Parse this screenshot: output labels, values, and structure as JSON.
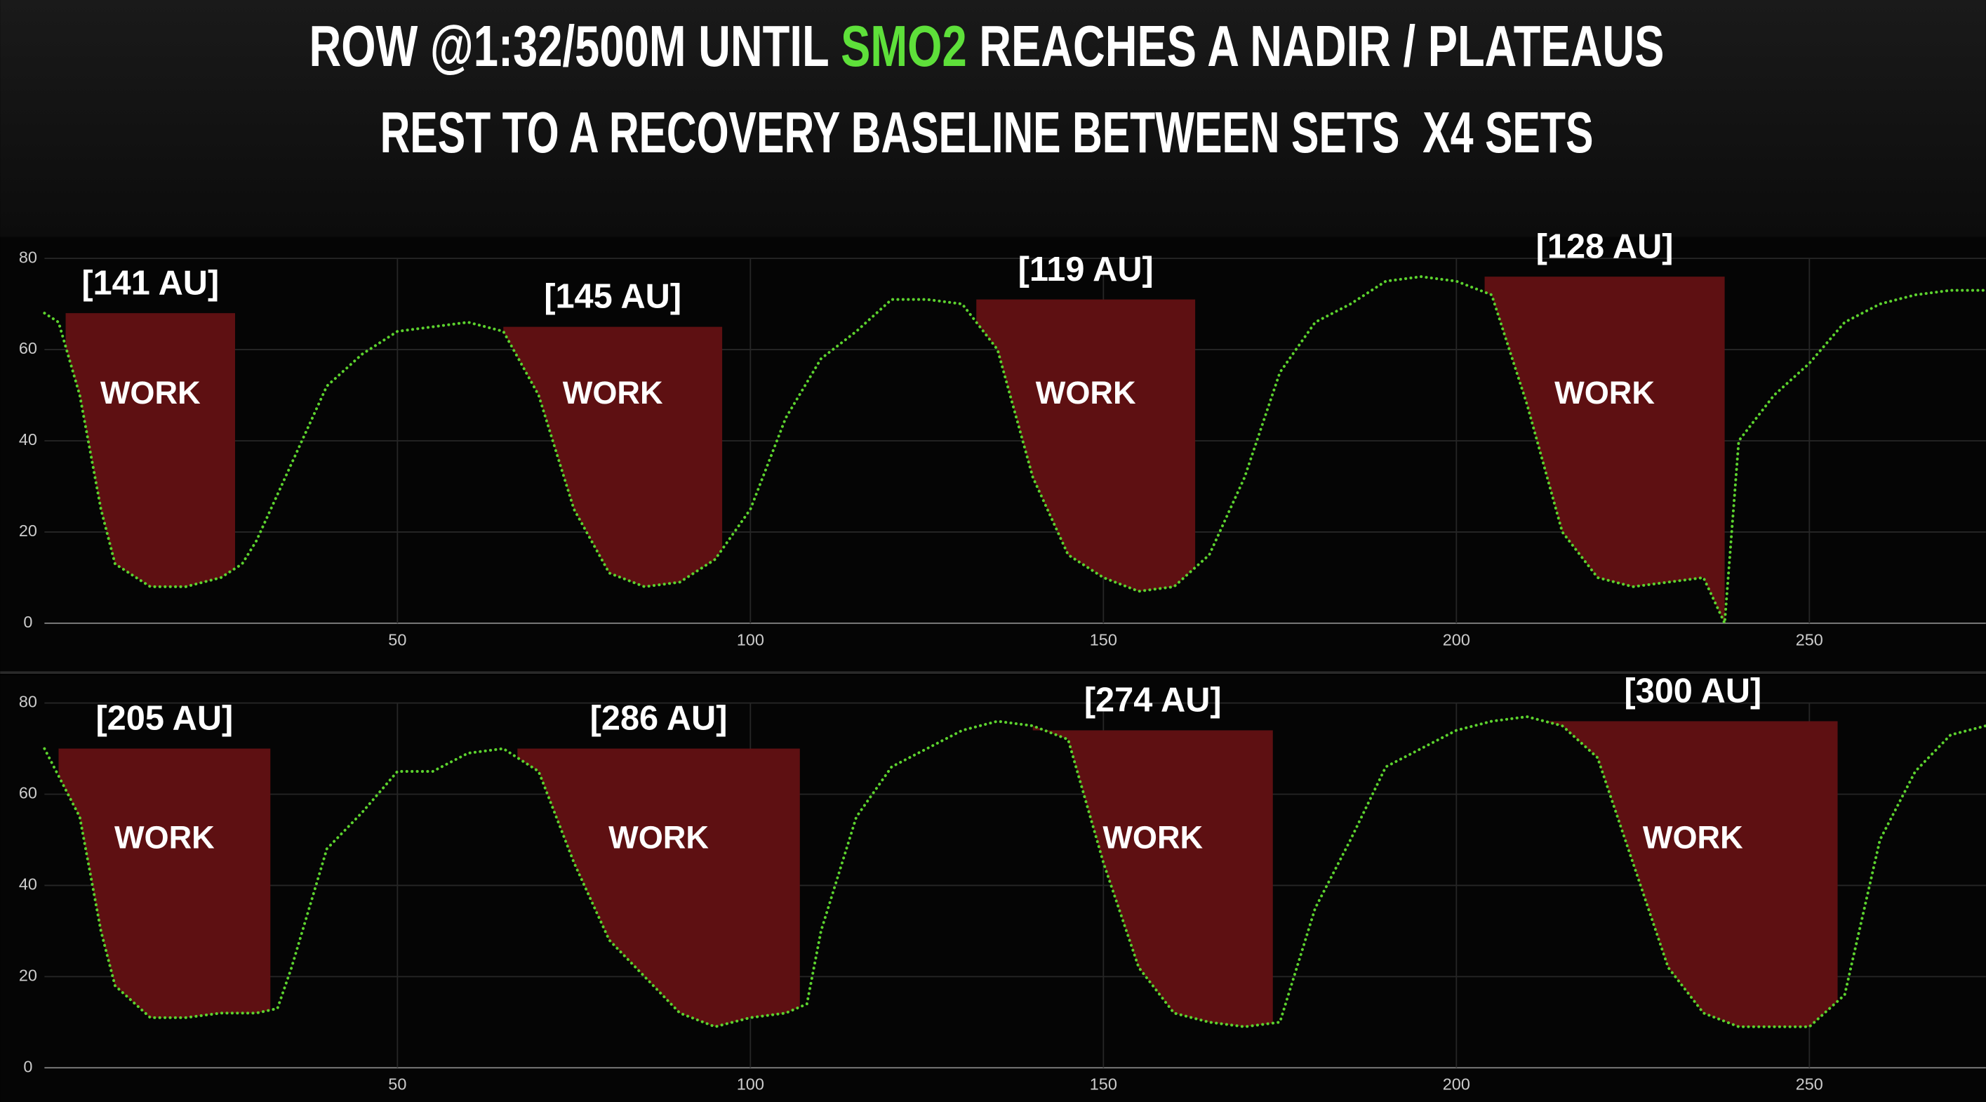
{
  "title": {
    "line1": [
      "ROW @1:32/500M UNTIL ",
      "SMO2",
      " REACHES A NADIR / PLATEAUS"
    ],
    "highlight_color": "#5ee03a",
    "line2": "REST TO A RECOVERY BASELINE BETWEEN SETS  X4 SETS"
  },
  "chart_data": [
    {
      "type": "line",
      "color": "#5cd22e",
      "xlim": [
        0,
        275
      ],
      "ylim": [
        0,
        80
      ],
      "xticks": [
        50,
        100,
        150,
        200,
        250
      ],
      "yticks": [
        0,
        20,
        40,
        60,
        80
      ],
      "grid": true,
      "x": [
        0,
        2,
        5,
        8,
        10,
        15,
        20,
        25,
        28,
        30,
        35,
        40,
        45,
        50,
        55,
        60,
        65,
        70,
        75,
        80,
        85,
        90,
        95,
        100,
        105,
        110,
        115,
        120,
        125,
        130,
        135,
        140,
        145,
        150,
        155,
        160,
        165,
        170,
        175,
        180,
        185,
        190,
        195,
        200,
        205,
        210,
        215,
        220,
        225,
        230,
        235,
        238,
        240,
        245,
        250,
        255,
        260,
        265,
        270,
        275
      ],
      "values": [
        68,
        66,
        50,
        25,
        13,
        8,
        8,
        10,
        13,
        18,
        35,
        52,
        59,
        64,
        65,
        66,
        64,
        50,
        25,
        11,
        8,
        9,
        14,
        25,
        45,
        58,
        64,
        71,
        71,
        70,
        60,
        32,
        15,
        10,
        7,
        8,
        15,
        32,
        55,
        66,
        70,
        75,
        76,
        75,
        72,
        48,
        20,
        10,
        8,
        9,
        10,
        0,
        40,
        50,
        57,
        66,
        70,
        72,
        73,
        73
      ],
      "annotations": [
        {
          "label": "[141 AU]",
          "text": "WORK",
          "x_start": 3,
          "x_end": 27,
          "top": 68,
          "color": "#5e1012"
        },
        {
          "label": "[145 AU]",
          "text": "WORK",
          "x_start": 65,
          "x_end": 96,
          "top": 65,
          "color": "#5e1012"
        },
        {
          "label": "[119 AU]",
          "text": "WORK",
          "x_start": 132,
          "x_end": 163,
          "top": 71,
          "color": "#5e1012"
        },
        {
          "label": "[128 AU]",
          "text": "WORK",
          "x_start": 204,
          "x_end": 238,
          "top": 76,
          "color": "#5e1012"
        }
      ]
    },
    {
      "type": "line",
      "color": "#5cd22e",
      "xlim": [
        0,
        275
      ],
      "ylim": [
        0,
        80
      ],
      "xticks": [
        50,
        100,
        150,
        200,
        250
      ],
      "yticks": [
        0,
        20,
        40,
        60,
        80
      ],
      "grid": true,
      "x": [
        0,
        5,
        8,
        10,
        15,
        20,
        25,
        30,
        33,
        35,
        40,
        45,
        50,
        55,
        60,
        65,
        70,
        75,
        80,
        85,
        90,
        95,
        100,
        105,
        108,
        110,
        115,
        120,
        125,
        130,
        135,
        140,
        145,
        150,
        155,
        160,
        165,
        170,
        175,
        180,
        185,
        190,
        195,
        200,
        205,
        210,
        215,
        220,
        225,
        230,
        235,
        240,
        245,
        250,
        255,
        260,
        265,
        270,
        275
      ],
      "values": [
        70,
        55,
        30,
        18,
        11,
        11,
        12,
        12,
        13,
        22,
        48,
        56,
        65,
        65,
        69,
        70,
        65,
        45,
        28,
        20,
        12,
        9,
        11,
        12,
        14,
        30,
        55,
        66,
        70,
        74,
        76,
        75,
        72,
        45,
        22,
        12,
        10,
        9,
        10,
        35,
        50,
        66,
        70,
        74,
        76,
        77,
        75,
        68,
        45,
        22,
        12,
        9,
        9,
        9,
        16,
        50,
        65,
        73,
        75
      ],
      "annotations": [
        {
          "label": "[205 AU]",
          "text": "WORK",
          "x_start": 2,
          "x_end": 32,
          "top": 70,
          "color": "#5e1012"
        },
        {
          "label": "[286 AU]",
          "text": "WORK",
          "x_start": 67,
          "x_end": 107,
          "top": 70,
          "color": "#5e1012"
        },
        {
          "label": "[274 AU]",
          "text": "WORK",
          "x_start": 140,
          "x_end": 174,
          "top": 74,
          "color": "#5e1012"
        },
        {
          "label": "[300 AU]",
          "text": "WORK",
          "x_start": 213,
          "x_end": 254,
          "top": 76,
          "color": "#5e1012"
        }
      ]
    }
  ]
}
